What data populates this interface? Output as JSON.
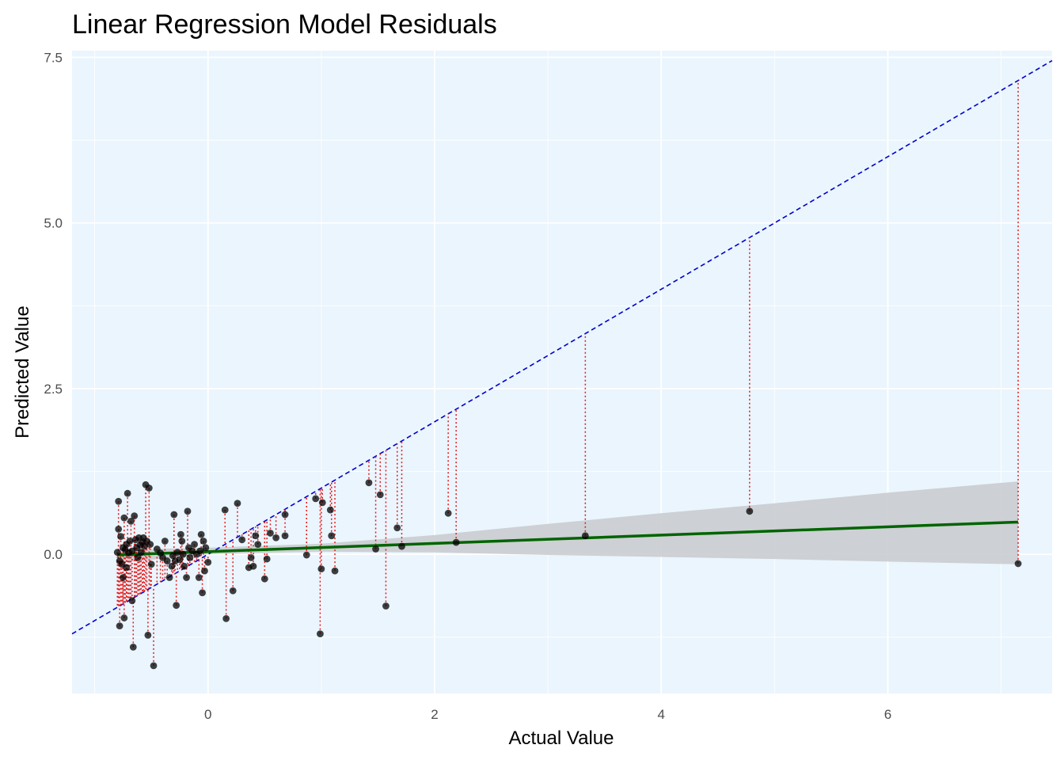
{
  "chart_data": {
    "type": "scatter",
    "title": "Linear Regression Model Residuals",
    "xlabel": "Actual Value",
    "ylabel": "Predicted Value",
    "xlim": [
      -1.2,
      7.45
    ],
    "ylim": [
      -2.1,
      7.6
    ],
    "x_ticks": [
      0,
      2,
      4,
      6
    ],
    "x_tick_labels": [
      "0",
      "2",
      "4",
      "6"
    ],
    "y_ticks": [
      0,
      2.5,
      5,
      7.5
    ],
    "y_tick_labels": [
      "0.0",
      "2.5",
      "5.0",
      "7.5"
    ],
    "grid": true,
    "background_color": "#EAF5FD",
    "point_color": "#000000",
    "residual_color": "#E41A1C",
    "identity_line_color": "#0000CD",
    "fit_line_color": "#006400",
    "band_color": "#C8C9CC",
    "fit_line": {
      "slope": 0.0625,
      "intercept": 0.04
    },
    "confidence_band": {
      "x": [
        -0.8,
        0.0,
        1.0,
        2.0,
        3.0,
        4.0,
        5.0,
        6.0,
        7.15
      ],
      "lower": [
        -0.13,
        0.0,
        0.04,
        0.03,
        -0.01,
        -0.04,
        -0.07,
        -0.11,
        -0.15
      ],
      "upper": [
        0.07,
        0.1,
        0.16,
        0.29,
        0.46,
        0.62,
        0.77,
        0.93,
        1.1
      ]
    },
    "points": [
      {
        "x": -0.8,
        "y": 0.03
      },
      {
        "x": -0.79,
        "y": 0.8
      },
      {
        "x": -0.79,
        "y": 0.38
      },
      {
        "x": -0.78,
        "y": -0.1
      },
      {
        "x": -0.78,
        "y": -1.08
      },
      {
        "x": -0.77,
        "y": 0.27
      },
      {
        "x": -0.76,
        "y": -0.15
      },
      {
        "x": -0.75,
        "y": 0.1
      },
      {
        "x": -0.75,
        "y": -0.35
      },
      {
        "x": -0.74,
        "y": -0.96
      },
      {
        "x": -0.74,
        "y": 0.55
      },
      {
        "x": -0.73,
        "y": 0.07
      },
      {
        "x": -0.72,
        "y": 0.15
      },
      {
        "x": -0.72,
        "y": -0.2
      },
      {
        "x": -0.71,
        "y": 0.92
      },
      {
        "x": -0.7,
        "y": 0.02
      },
      {
        "x": -0.69,
        "y": 0.2
      },
      {
        "x": -0.68,
        "y": 0.5
      },
      {
        "x": -0.67,
        "y": 0.05
      },
      {
        "x": -0.67,
        "y": -0.7
      },
      {
        "x": -0.66,
        "y": -1.4
      },
      {
        "x": -0.65,
        "y": 0.58
      },
      {
        "x": -0.64,
        "y": 0.22
      },
      {
        "x": -0.63,
        "y": 0.1
      },
      {
        "x": -0.62,
        "y": -0.05
      },
      {
        "x": -0.61,
        "y": 0.25
      },
      {
        "x": -0.6,
        "y": 0.14
      },
      {
        "x": -0.59,
        "y": 0.03
      },
      {
        "x": -0.58,
        "y": 0.18
      },
      {
        "x": -0.57,
        "y": 0.25
      },
      {
        "x": -0.56,
        "y": 0.12
      },
      {
        "x": -0.55,
        "y": 1.05
      },
      {
        "x": -0.54,
        "y": 0.2
      },
      {
        "x": -0.53,
        "y": -1.22
      },
      {
        "x": -0.52,
        "y": 1.0
      },
      {
        "x": -0.51,
        "y": 0.15
      },
      {
        "x": -0.5,
        "y": -0.15
      },
      {
        "x": -0.48,
        "y": -1.68
      },
      {
        "x": -0.45,
        "y": 0.08
      },
      {
        "x": -0.42,
        "y": 0.02
      },
      {
        "x": -0.4,
        "y": -0.05
      },
      {
        "x": -0.38,
        "y": 0.2
      },
      {
        "x": -0.36,
        "y": -0.1
      },
      {
        "x": -0.34,
        "y": -0.35
      },
      {
        "x": -0.32,
        "y": -0.18
      },
      {
        "x": -0.31,
        "y": -0.02
      },
      {
        "x": -0.3,
        "y": 0.6
      },
      {
        "x": -0.29,
        "y": -0.1
      },
      {
        "x": -0.28,
        "y": -0.77
      },
      {
        "x": -0.27,
        "y": 0.03
      },
      {
        "x": -0.25,
        "y": -0.08
      },
      {
        "x": -0.24,
        "y": 0.3
      },
      {
        "x": -0.23,
        "y": 0.2
      },
      {
        "x": -0.22,
        "y": 0.0
      },
      {
        "x": -0.21,
        "y": -0.18
      },
      {
        "x": -0.19,
        "y": -0.35
      },
      {
        "x": -0.18,
        "y": 0.65
      },
      {
        "x": -0.17,
        "y": 0.1
      },
      {
        "x": -0.16,
        "y": -0.05
      },
      {
        "x": -0.14,
        "y": 0.05
      },
      {
        "x": -0.12,
        "y": 0.15
      },
      {
        "x": -0.1,
        "y": 0.0
      },
      {
        "x": -0.08,
        "y": -0.35
      },
      {
        "x": -0.07,
        "y": 0.05
      },
      {
        "x": -0.06,
        "y": 0.3
      },
      {
        "x": -0.05,
        "y": -0.58
      },
      {
        "x": -0.04,
        "y": 0.2
      },
      {
        "x": -0.03,
        "y": -0.25
      },
      {
        "x": -0.02,
        "y": 0.1
      },
      {
        "x": 0.0,
        "y": -0.12
      },
      {
        "x": 0.15,
        "y": 0.67
      },
      {
        "x": 0.16,
        "y": -0.97
      },
      {
        "x": 0.22,
        "y": -0.55
      },
      {
        "x": 0.26,
        "y": 0.77
      },
      {
        "x": 0.3,
        "y": 0.22
      },
      {
        "x": 0.36,
        "y": -0.2
      },
      {
        "x": 0.38,
        "y": -0.05
      },
      {
        "x": 0.4,
        "y": -0.18
      },
      {
        "x": 0.42,
        "y": 0.28
      },
      {
        "x": 0.44,
        "y": 0.15
      },
      {
        "x": 0.5,
        "y": -0.37
      },
      {
        "x": 0.52,
        "y": -0.07
      },
      {
        "x": 0.55,
        "y": 0.32
      },
      {
        "x": 0.6,
        "y": 0.25
      },
      {
        "x": 0.68,
        "y": 0.6
      },
      {
        "x": 0.68,
        "y": 0.28
      },
      {
        "x": 0.87,
        "y": -0.01
      },
      {
        "x": 0.95,
        "y": 0.84
      },
      {
        "x": 0.99,
        "y": -1.2
      },
      {
        "x": 1.0,
        "y": -0.22
      },
      {
        "x": 1.01,
        "y": 0.78
      },
      {
        "x": 1.08,
        "y": 0.67
      },
      {
        "x": 1.09,
        "y": 0.28
      },
      {
        "x": 1.12,
        "y": -0.25
      },
      {
        "x": 1.42,
        "y": 1.08
      },
      {
        "x": 1.48,
        "y": 0.08
      },
      {
        "x": 1.52,
        "y": 0.9
      },
      {
        "x": 1.57,
        "y": -0.78
      },
      {
        "x": 1.67,
        "y": 0.4
      },
      {
        "x": 1.71,
        "y": 0.12
      },
      {
        "x": 2.12,
        "y": 0.62
      },
      {
        "x": 2.19,
        "y": 0.18
      },
      {
        "x": 3.33,
        "y": 0.28
      },
      {
        "x": 4.78,
        "y": 0.65
      },
      {
        "x": 7.15,
        "y": -0.14
      }
    ]
  }
}
